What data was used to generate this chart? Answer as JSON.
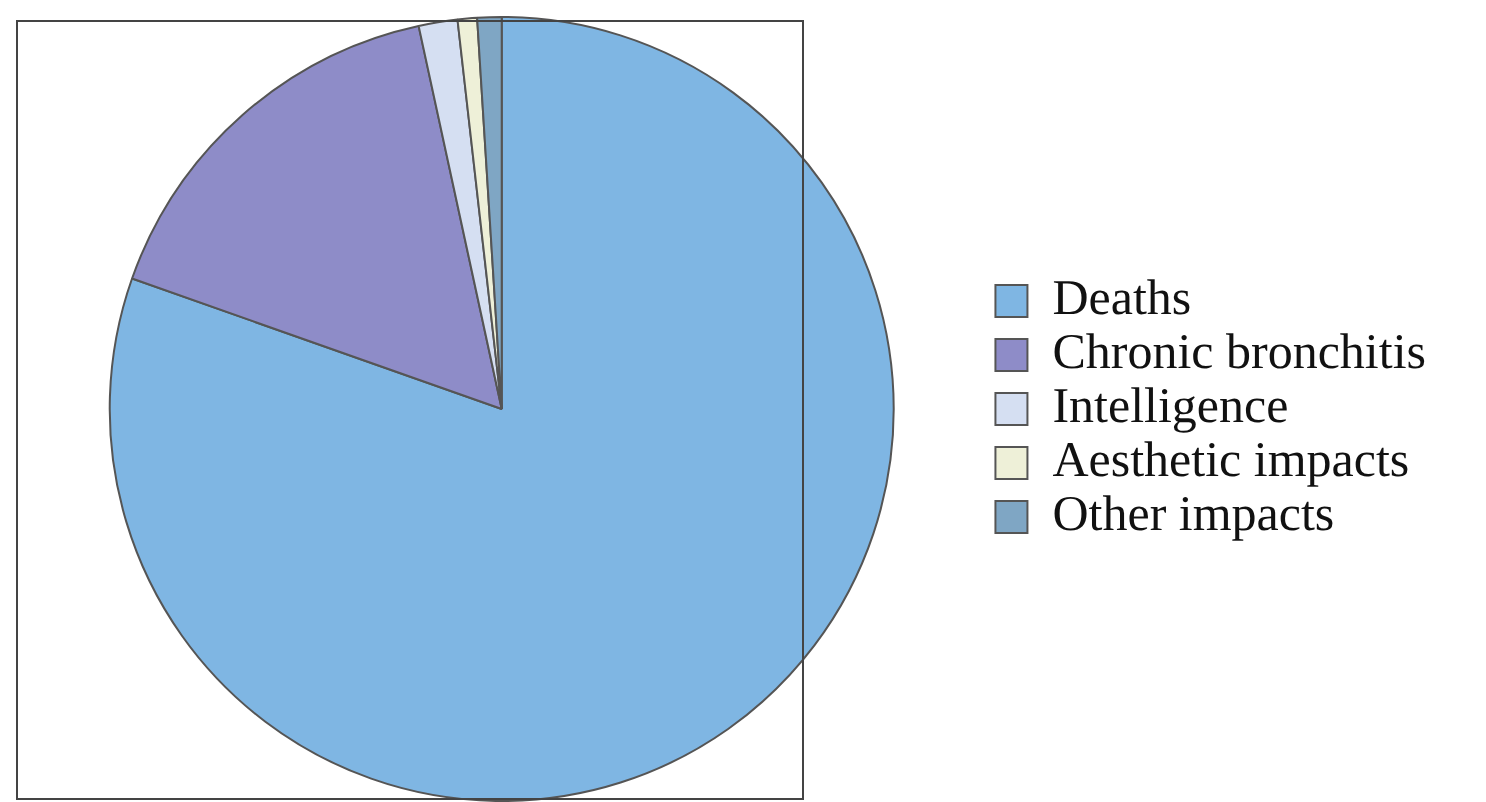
{
  "chart_data": {
    "type": "pie",
    "categories": [
      "Deaths",
      "Chronic bronchitis",
      "Intelligence",
      "Aesthetic impacts",
      "Other impacts"
    ],
    "values": [
      80.4,
      16.2,
      1.6,
      0.8,
      1.0
    ],
    "colors": [
      "#7fb6e3",
      "#8e8cc8",
      "#d5dff2",
      "#eef0d8",
      "#7fa6c4"
    ],
    "legend": "right"
  }
}
